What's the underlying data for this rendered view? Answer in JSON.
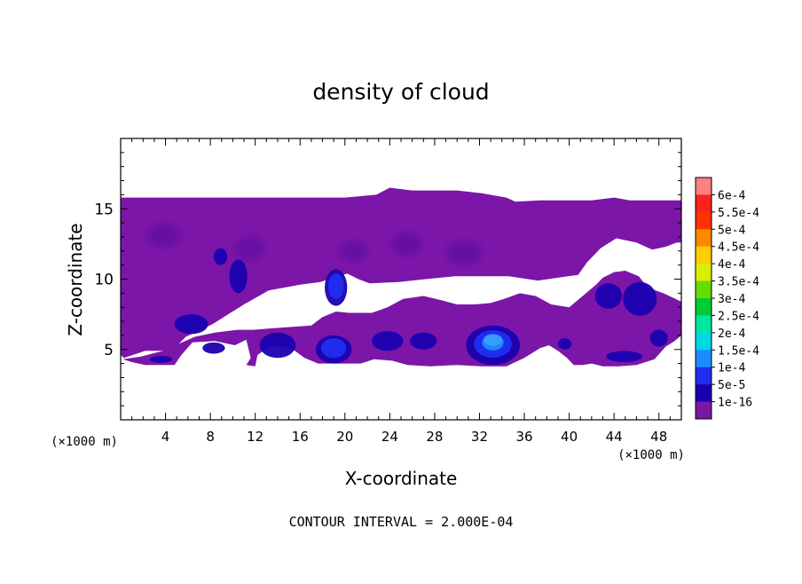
{
  "chart_data": {
    "type": "heatmap",
    "title": "density of cloud",
    "xlabel": "X-coordinate",
    "ylabel": "Z-coordinate",
    "x_unit_left": "(×1000 m)",
    "x_unit_right": "(×1000 m)",
    "footer": "CONTOUR INTERVAL = 2.000E-04",
    "xlim": [
      0,
      50
    ],
    "ylim": [
      0,
      20
    ],
    "x_ticks": [
      4,
      8,
      12,
      16,
      20,
      24,
      28,
      32,
      36,
      40,
      44,
      48
    ],
    "y_ticks": [
      5,
      10,
      15
    ],
    "background_color": "#7b16a8",
    "colorbar": {
      "labels": [
        "6e-4",
        "5.5e-4",
        "5e-4",
        "4.5e-4",
        "4e-4",
        "3.5e-4",
        "3e-4",
        "2.5e-4",
        "2e-4",
        "1.5e-4",
        "1e-4",
        "5e-5",
        "1e-16"
      ],
      "colors": [
        "#ff8080",
        "#ff2020",
        "#ff3300",
        "#ff8800",
        "#ffcc00",
        "#d8f000",
        "#66dd00",
        "#00cc33",
        "#00e8a0",
        "#00d8e8",
        "#1a8cff",
        "#1f2ef0",
        "#1a00b0",
        "#7b16a8"
      ]
    },
    "cloud_regions": [
      {
        "name": "upper cloud layer",
        "polygon": [
          [
            0.3,
            4.4
          ],
          [
            2.2,
            4.9
          ],
          [
            4.6,
            4.9
          ],
          [
            5.8,
            5.9
          ],
          [
            8.2,
            6.8
          ],
          [
            11,
            8.2
          ],
          [
            13.2,
            9.2
          ],
          [
            16,
            9.6
          ],
          [
            17.8,
            9.8
          ],
          [
            20.2,
            10.4
          ],
          [
            21.2,
            10
          ],
          [
            22.2,
            9.7
          ],
          [
            24.8,
            9.8
          ],
          [
            27.2,
            10
          ],
          [
            29.8,
            10.2
          ],
          [
            32.2,
            10.2
          ],
          [
            34.6,
            10.2
          ],
          [
            37.2,
            9.9
          ],
          [
            39,
            10.1
          ],
          [
            40.8,
            10.3
          ],
          [
            41.6,
            11.2
          ],
          [
            42.8,
            12.2
          ],
          [
            44.2,
            12.9
          ],
          [
            46,
            12.6
          ],
          [
            47.4,
            12.1
          ],
          [
            48.6,
            12.3
          ],
          [
            49.6,
            12.6
          ],
          [
            50,
            12.6
          ],
          [
            50,
            15.6
          ],
          [
            45.4,
            15.6
          ],
          [
            44,
            15.8
          ],
          [
            42,
            15.6
          ],
          [
            40,
            15.6
          ],
          [
            37.4,
            15.6
          ],
          [
            35.2,
            15.5
          ],
          [
            34.4,
            15.8
          ],
          [
            32.2,
            16.1
          ],
          [
            30,
            16.3
          ],
          [
            28,
            16.3
          ],
          [
            26,
            16.3
          ],
          [
            24,
            16.5
          ],
          [
            22.8,
            16
          ],
          [
            20,
            15.8
          ],
          [
            16,
            15.8
          ],
          [
            12,
            15.8
          ],
          [
            8,
            15.8
          ],
          [
            4,
            15.8
          ],
          [
            0,
            15.8
          ],
          [
            0,
            11
          ],
          [
            0,
            7
          ],
          [
            0,
            4.6
          ]
        ]
      },
      {
        "name": "lower cloud layer",
        "polygon": [
          [
            1,
            4.1
          ],
          [
            2.2,
            3.9
          ],
          [
            4.8,
            3.9
          ],
          [
            5.4,
            4.6
          ],
          [
            6.4,
            5.5
          ],
          [
            8.4,
            5.6
          ],
          [
            10.2,
            5.3
          ],
          [
            11.2,
            5.7
          ],
          [
            11.6,
            4.4
          ],
          [
            11.2,
            3.9
          ],
          [
            12,
            3.8
          ],
          [
            12.2,
            4.6
          ],
          [
            13.4,
            5.3
          ],
          [
            15.2,
            5.1
          ],
          [
            16.4,
            4.4
          ],
          [
            17.6,
            4
          ],
          [
            19.6,
            4
          ],
          [
            21.4,
            4
          ],
          [
            22.6,
            4.3
          ],
          [
            24.2,
            4.2
          ],
          [
            25.6,
            3.9
          ],
          [
            27.6,
            3.8
          ],
          [
            30,
            3.9
          ],
          [
            32.2,
            3.8
          ],
          [
            34.4,
            3.8
          ],
          [
            36,
            4.4
          ],
          [
            37.4,
            5.1
          ],
          [
            38.2,
            5.3
          ],
          [
            39,
            4.9
          ],
          [
            39.8,
            4.4
          ],
          [
            40.4,
            3.9
          ],
          [
            41.2,
            3.9
          ],
          [
            42,
            4
          ],
          [
            43,
            3.8
          ],
          [
            44.4,
            3.8
          ],
          [
            46,
            3.9
          ],
          [
            47.6,
            4.3
          ],
          [
            48.6,
            5.2
          ],
          [
            49.4,
            5.6
          ],
          [
            50,
            6
          ],
          [
            50,
            8.4
          ],
          [
            48.4,
            9
          ],
          [
            47,
            9.4
          ],
          [
            46.2,
            10.2
          ],
          [
            45,
            10.6
          ],
          [
            44,
            10.5
          ],
          [
            43,
            10.1
          ],
          [
            42.4,
            9.6
          ],
          [
            41.2,
            8.8
          ],
          [
            40,
            8
          ],
          [
            38.4,
            8.2
          ],
          [
            37,
            8.8
          ],
          [
            35.6,
            9
          ],
          [
            34.2,
            8.6
          ],
          [
            33,
            8.3
          ],
          [
            31.6,
            8.2
          ],
          [
            30,
            8.2
          ],
          [
            28.6,
            8.5
          ],
          [
            27,
            8.8
          ],
          [
            25.2,
            8.6
          ],
          [
            23.8,
            8
          ],
          [
            22.4,
            7.6
          ],
          [
            20.4,
            7.6
          ],
          [
            19.2,
            7.7
          ],
          [
            18,
            7.3
          ],
          [
            17,
            6.7
          ],
          [
            15.2,
            6.6
          ],
          [
            13.4,
            6.5
          ],
          [
            11.8,
            6.4
          ],
          [
            10.4,
            6.4
          ],
          [
            8.4,
            6.2
          ],
          [
            6.6,
            5.9
          ],
          [
            5.2,
            5.4
          ],
          [
            3.8,
            4.9
          ],
          [
            1.8,
            4.5
          ],
          [
            0.2,
            4.3
          ]
        ]
      }
    ],
    "blue_cells": [
      {
        "x": 3.6,
        "z": 4.3,
        "rx": 1.0,
        "rz": 0.25,
        "level": 1
      },
      {
        "x": 6.3,
        "z": 6.8,
        "rx": 1.5,
        "rz": 0.7,
        "level": 1
      },
      {
        "x": 8.3,
        "z": 5.1,
        "rx": 1.0,
        "rz": 0.4,
        "level": 1
      },
      {
        "x": 10.5,
        "z": 10.2,
        "rx": 0.8,
        "rz": 1.2,
        "level": 1
      },
      {
        "x": 8.9,
        "z": 11.6,
        "rx": 0.6,
        "rz": 0.6,
        "level": 1
      },
      {
        "x": 14.0,
        "z": 5.3,
        "rx": 1.6,
        "rz": 0.9,
        "level": 1
      },
      {
        "x": 19.2,
        "z": 9.4,
        "rx": 1.0,
        "rz": 1.3,
        "level": 2
      },
      {
        "x": 19.0,
        "z": 5.0,
        "rx": 1.6,
        "rz": 1.0,
        "level": 2
      },
      {
        "x": 23.8,
        "z": 5.6,
        "rx": 1.4,
        "rz": 0.7,
        "level": 1
      },
      {
        "x": 27.0,
        "z": 5.6,
        "rx": 1.2,
        "rz": 0.6,
        "level": 1
      },
      {
        "x": 33.2,
        "z": 5.3,
        "rx": 2.4,
        "rz": 1.4,
        "level": 3
      },
      {
        "x": 43.5,
        "z": 8.8,
        "rx": 1.2,
        "rz": 0.9,
        "level": 1
      },
      {
        "x": 46.3,
        "z": 8.6,
        "rx": 1.5,
        "rz": 1.2,
        "level": 1
      },
      {
        "x": 48.0,
        "z": 5.8,
        "rx": 0.8,
        "rz": 0.6,
        "level": 1
      },
      {
        "x": 44.9,
        "z": 4.5,
        "rx": 1.6,
        "rz": 0.4,
        "level": 1
      },
      {
        "x": 39.6,
        "z": 5.4,
        "rx": 0.6,
        "rz": 0.4,
        "level": 1
      }
    ],
    "dark_patches": [
      {
        "x": 3.8,
        "z": 13.1,
        "rx": 1.4,
        "rz": 0.8
      },
      {
        "x": 11.5,
        "z": 12.2,
        "rx": 1.2,
        "rz": 0.8
      },
      {
        "x": 30.6,
        "z": 11.9,
        "rx": 1.6,
        "rz": 0.8
      },
      {
        "x": 20.8,
        "z": 12.0,
        "rx": 1.2,
        "rz": 0.7
      },
      {
        "x": 25.5,
        "z": 12.5,
        "rx": 1.3,
        "rz": 0.8
      }
    ]
  }
}
